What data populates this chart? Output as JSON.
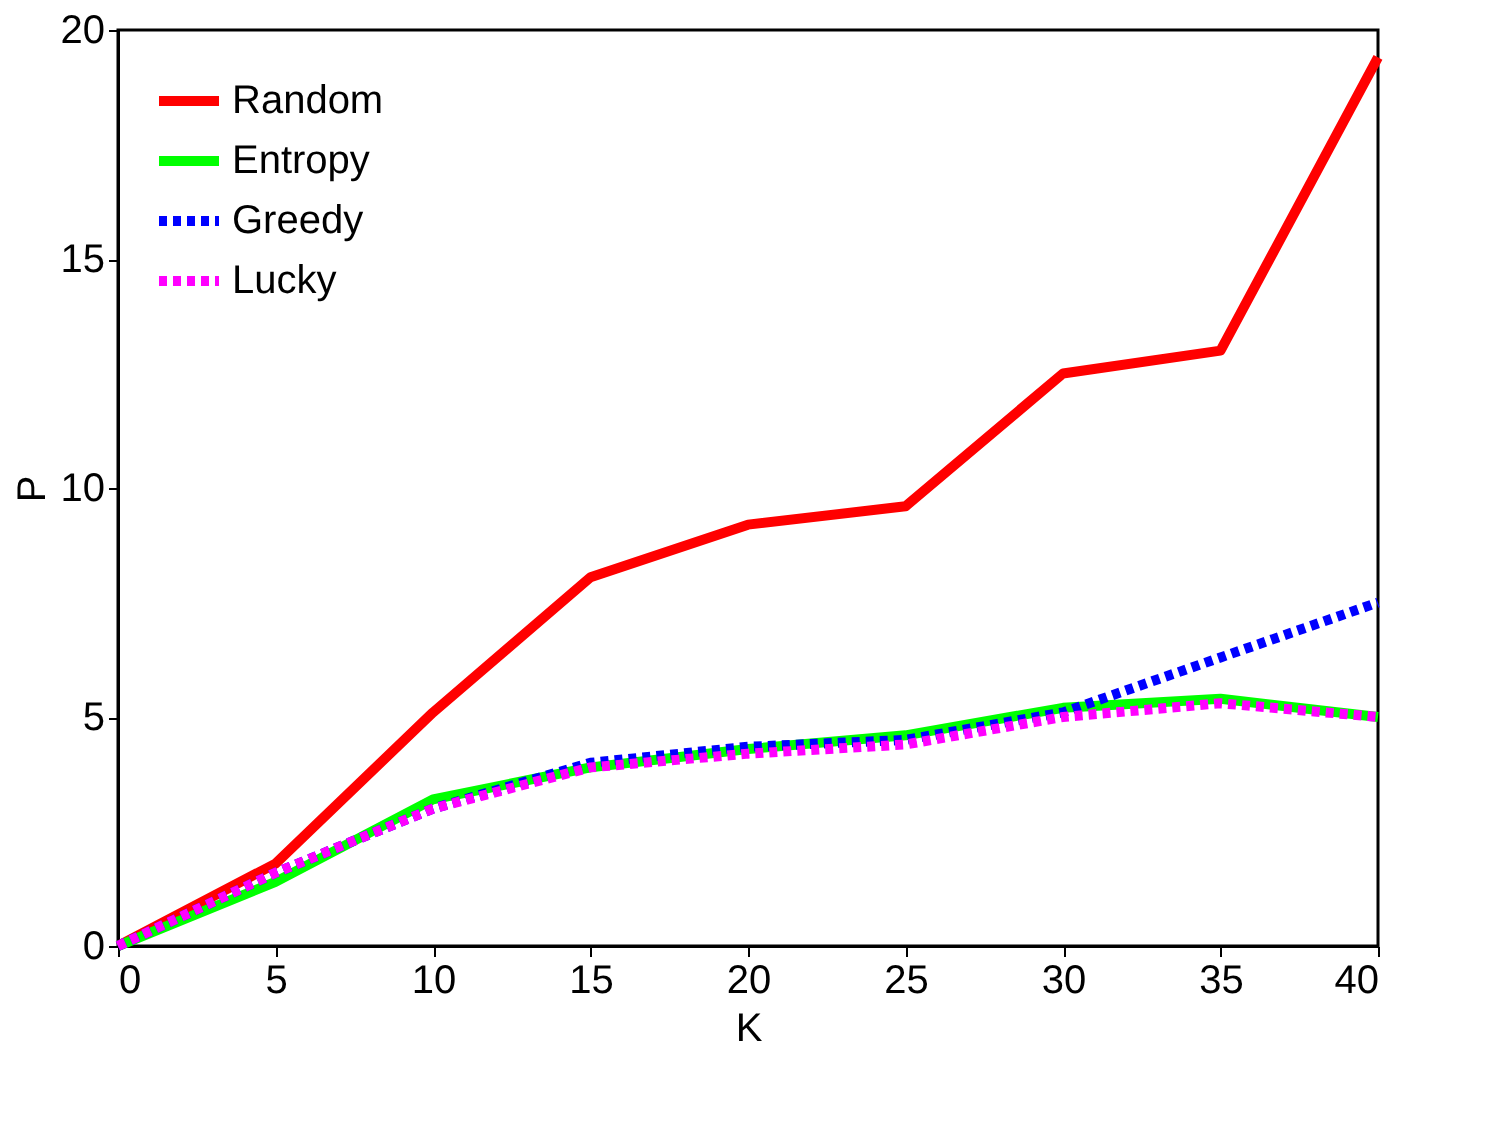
{
  "chart_data": {
    "type": "line",
    "xlabel": "K",
    "ylabel": "P",
    "x": [
      0,
      5,
      10,
      15,
      20,
      25,
      30,
      35,
      40
    ],
    "series": [
      {
        "name": "Random",
        "color": "#ff0000",
        "line_style": "solid",
        "values": [
          0,
          1.8,
          5.1,
          8.05,
          9.2,
          9.6,
          12.5,
          13,
          19.4
        ]
      },
      {
        "name": "Entropy",
        "color": "#00ff00",
        "line_style": "solid",
        "values": [
          0,
          1.4,
          3.2,
          3.9,
          4.3,
          4.6,
          5.2,
          5.4,
          5.0
        ]
      },
      {
        "name": "Greedy",
        "color": "#0000ff",
        "line_style": "dotted",
        "values": [
          0,
          1.6,
          3.0,
          4.0,
          4.35,
          4.5,
          5.1,
          6.3,
          7.5
        ]
      },
      {
        "name": "Lucky",
        "color": "#ff00ff",
        "line_style": "dotted",
        "values": [
          0,
          1.6,
          3.0,
          3.9,
          4.2,
          4.4,
          5.0,
          5.3,
          5.0
        ]
      }
    ],
    "xlim": [
      0,
      40
    ],
    "xticks": [
      0,
      5,
      10,
      15,
      20,
      25,
      30,
      35,
      40
    ],
    "ylim": [
      0,
      20
    ],
    "yticks": [
      0,
      5,
      10,
      15,
      20
    ],
    "grid": false,
    "legend": "top left",
    "marker": "none"
  }
}
